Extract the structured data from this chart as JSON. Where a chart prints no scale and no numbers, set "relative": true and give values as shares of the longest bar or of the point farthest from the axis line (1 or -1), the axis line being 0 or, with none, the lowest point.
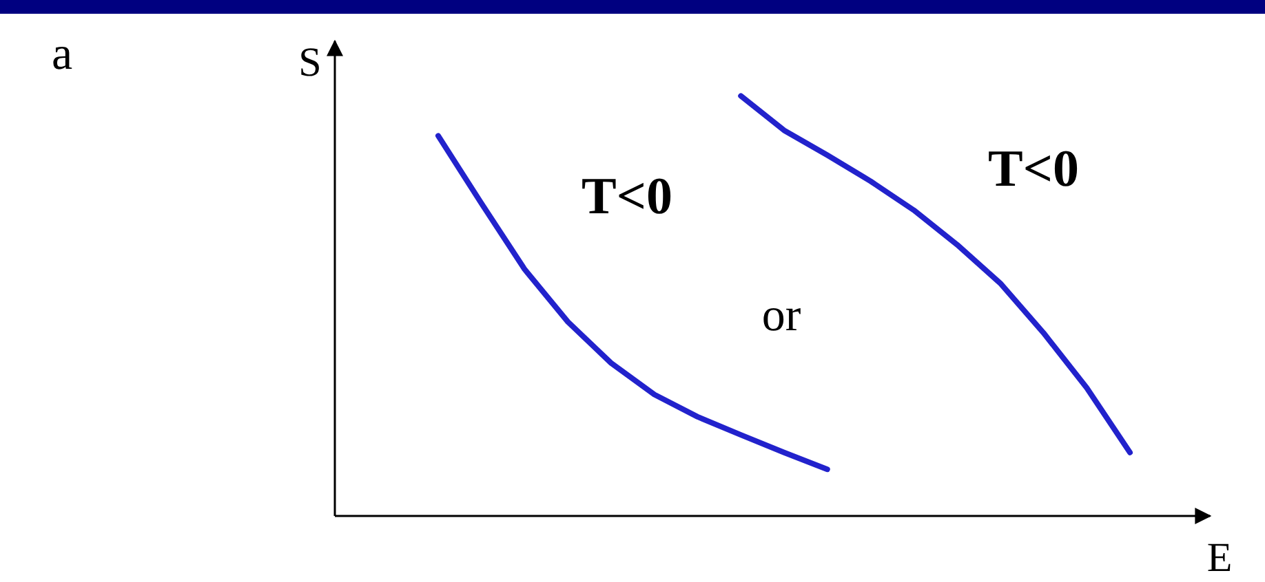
{
  "chart_data": {
    "type": "line",
    "relative": true,
    "xlabel": "E",
    "ylabel": "S",
    "categories": [
      null,
      null,
      null,
      null,
      null,
      null,
      null,
      null,
      null,
      null,
      null,
      null,
      null,
      null,
      null,
      null,
      null
    ],
    "annotations": [
      "a",
      "or"
    ],
    "series": [
      {
        "name": "T<0",
        "color": "#2222cc",
        "values": [
          0.905,
          0.744,
          0.587,
          0.462,
          0.364,
          0.289,
          0.236,
          0.193,
          0.151,
          0.111,
          null,
          null,
          null,
          null,
          null,
          null,
          null
        ]
      },
      {
        "name": "T<0",
        "color": "#2222cc",
        "values": [
          null,
          null,
          null,
          null,
          null,
          null,
          null,
          1,
          0.918,
          0.859,
          0.797,
          0.728,
          0.646,
          0.554,
          0.436,
          0.305,
          0.151
        ]
      }
    ]
  }
}
